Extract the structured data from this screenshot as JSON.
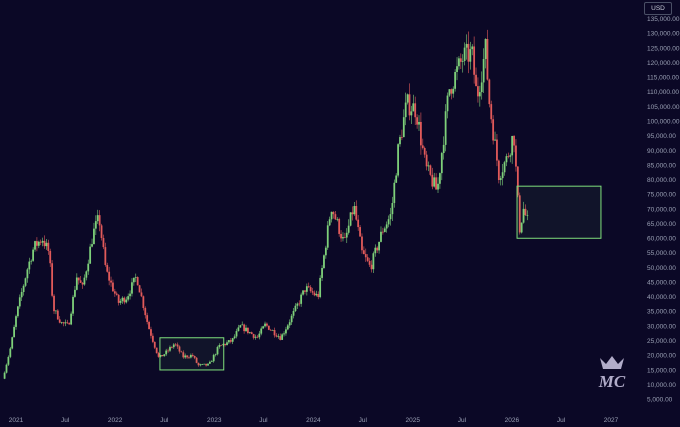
{
  "currency": "USD",
  "logo_text": "MC",
  "colors": {
    "background": "#0b0826",
    "up": "#7ed07a",
    "down": "#e25a5a",
    "zone_border": "#7fe07c",
    "zone_fill": "rgba(127,224,124,0.06)",
    "axis_text": "#9aa0b4"
  },
  "chart_data": {
    "type": "candlestick",
    "title": "",
    "xlabel": "",
    "ylabel": "",
    "grid": false,
    "xlim": [
      "2021-01-01",
      "2027-02-01"
    ],
    "ylim": [
      2000,
      138000
    ],
    "y_ticks": [
      5000,
      10000,
      15000,
      20000,
      25000,
      30000,
      35000,
      40000,
      45000,
      50000,
      55000,
      60000,
      65000,
      70000,
      75000,
      80000,
      85000,
      90000,
      95000,
      100000,
      105000,
      110000,
      115000,
      120000,
      125000,
      130000,
      135000
    ],
    "y_tick_labels": [
      "5,000.00",
      "10,000.00",
      "15,000.00",
      "20,000.00",
      "25,000.00",
      "30,000.00",
      "35,000.00",
      "40,000.00",
      "45,000.00",
      "50,000.00",
      "55,000.00",
      "60,000.00",
      "65,000.00",
      "70,000.00",
      "75,000.00",
      "80,000.00",
      "85,000.00",
      "90,000.00",
      "95,000.00",
      "100,000.00",
      "105,000.00",
      "110,000.00",
      "115,000.00",
      "120,000.00",
      "125,000.00",
      "130,000.00",
      "135,000.00"
    ],
    "x_ticks": [
      {
        "date": "2021-01-01",
        "label": "2021"
      },
      {
        "date": "2021-07-01",
        "label": "Jul"
      },
      {
        "date": "2022-01-01",
        "label": "2022"
      },
      {
        "date": "2022-07-01",
        "label": "Jul"
      },
      {
        "date": "2023-01-01",
        "label": "2023"
      },
      {
        "date": "2023-07-01",
        "label": "Jul"
      },
      {
        "date": "2024-01-01",
        "label": "2024"
      },
      {
        "date": "2024-07-01",
        "label": "Jul"
      },
      {
        "date": "2025-01-01",
        "label": "2025"
      },
      {
        "date": "2025-07-01",
        "label": "Jul"
      },
      {
        "date": "2026-01-01",
        "label": "2026"
      },
      {
        "date": "2026-07-01",
        "label": "Jul"
      },
      {
        "date": "2027-01-01",
        "label": "2027"
      }
    ],
    "price_path": [
      [
        "2020-11-20",
        12000
      ],
      [
        "2020-12-20",
        23000
      ],
      [
        "2021-01-10",
        34000
      ],
      [
        "2021-02-20",
        50000
      ],
      [
        "2021-03-15",
        57000
      ],
      [
        "2021-04-15",
        60000
      ],
      [
        "2021-05-10",
        55000
      ],
      [
        "2021-05-25",
        36000
      ],
      [
        "2021-06-25",
        31000
      ],
      [
        "2021-07-20",
        30000
      ],
      [
        "2021-08-20",
        47000
      ],
      [
        "2021-09-10",
        43000
      ],
      [
        "2021-10-20",
        62000
      ],
      [
        "2021-11-10",
        67000
      ],
      [
        "2021-12-05",
        49000
      ],
      [
        "2022-01-20",
        38000
      ],
      [
        "2022-02-20",
        40000
      ],
      [
        "2022-03-28",
        47000
      ],
      [
        "2022-05-10",
        30000
      ],
      [
        "2022-06-18",
        19000
      ],
      [
        "2022-07-15",
        21000
      ],
      [
        "2022-08-15",
        24000
      ],
      [
        "2022-09-15",
        19500
      ],
      [
        "2022-10-20",
        20000
      ],
      [
        "2022-11-10",
        16500
      ],
      [
        "2022-12-20",
        16700
      ],
      [
        "2023-01-25",
        23000
      ],
      [
        "2023-03-15",
        25000
      ],
      [
        "2023-04-15",
        30000
      ],
      [
        "2023-06-15",
        26000
      ],
      [
        "2023-07-15",
        30500
      ],
      [
        "2023-09-10",
        26000
      ],
      [
        "2023-10-25",
        34000
      ],
      [
        "2023-12-10",
        43000
      ],
      [
        "2024-01-25",
        40000
      ],
      [
        "2024-03-14",
        71000
      ],
      [
        "2024-05-01",
        58000
      ],
      [
        "2024-06-05",
        71000
      ],
      [
        "2024-07-05",
        55000
      ],
      [
        "2024-08-05",
        50000
      ],
      [
        "2024-09-20",
        63000
      ],
      [
        "2024-10-20",
        68000
      ],
      [
        "2024-11-15",
        90000
      ],
      [
        "2024-12-17",
        106000
      ],
      [
        "2025-01-20",
        104000
      ],
      [
        "2025-02-25",
        84000
      ],
      [
        "2025-04-08",
        76000
      ],
      [
        "2025-05-22",
        111000
      ],
      [
        "2025-07-14",
        122000
      ],
      [
        "2025-08-14",
        123000
      ],
      [
        "2025-09-01",
        108000
      ],
      [
        "2025-10-06",
        126000
      ],
      [
        "2025-10-12",
        110000
      ],
      [
        "2025-11-21",
        82000
      ],
      [
        "2025-12-20",
        87000
      ],
      [
        "2026-01-15",
        96000
      ],
      [
        "2026-02-05",
        63000
      ],
      [
        "2026-02-20",
        70000
      ],
      [
        "2026-03-05",
        66000
      ]
    ],
    "zones": [
      {
        "name": "zone-2022-accumulation",
        "x0": "2022-06-15",
        "x1": "2023-02-05",
        "y0": 15000,
        "y1": 26000
      },
      {
        "name": "zone-2026-target",
        "x0": "2026-01-20",
        "x1": "2026-11-25",
        "y0": 60000,
        "y1": 77800
      }
    ]
  }
}
